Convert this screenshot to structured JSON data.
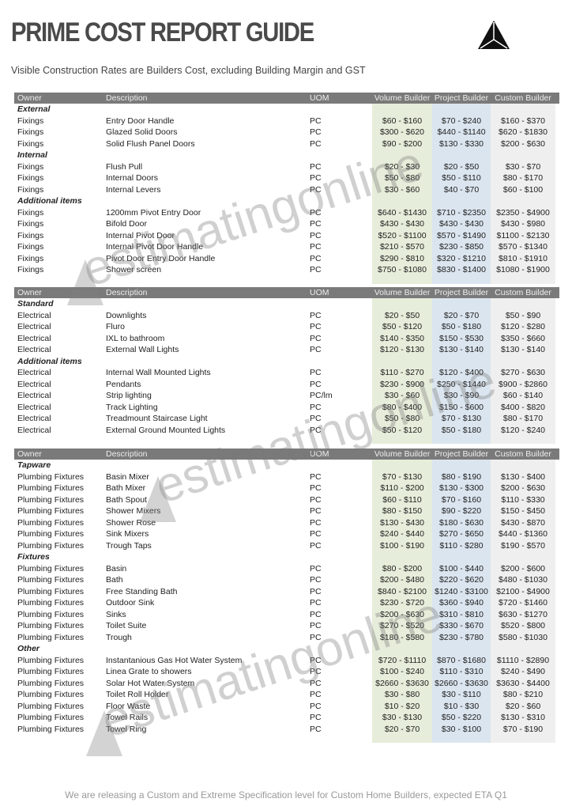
{
  "title": "PRIME COST REPORT GUIDE",
  "subtitle": "Visible Construction Rates are Builders Cost, excluding Building Margin and GST",
  "logo_icon": "triangle-logo-icon",
  "watermark": "estimatingonline",
  "colors": {
    "header_bg": "#7a7a7a",
    "volume_band": "#e6edda",
    "project_band": "#dbe5ef",
    "custom_band": "#efefef"
  },
  "columns": {
    "owner": "Owner",
    "description": "Description",
    "uom": "UOM",
    "volume": "Volume Builder",
    "project": "Project Builder",
    "custom": "Custom Builder"
  },
  "sections": [
    {
      "rows": [
        {
          "group": "External"
        },
        {
          "owner": "Fixings",
          "description": "Entry Door Handle",
          "uom": "PC",
          "volume": "$60 - $160",
          "project": "$70 - $240",
          "custom": "$160 - $370"
        },
        {
          "owner": "Fixings",
          "description": "Glazed Solid Doors",
          "uom": "PC",
          "volume": "$300 - $620",
          "project": "$440 - $1140",
          "custom": "$620 - $1830"
        },
        {
          "owner": "Fixings",
          "description": "Solid Flush Panel Doors",
          "uom": "PC",
          "volume": "$90 - $200",
          "project": "$130 - $330",
          "custom": "$200 - $630"
        },
        {
          "group": "Internal"
        },
        {
          "owner": "Fixings",
          "description": "Flush Pull",
          "uom": "PC",
          "volume": "$20 - $30",
          "project": "$20 - $50",
          "custom": "$30 - $70"
        },
        {
          "owner": "Fixings",
          "description": "Internal Doors",
          "uom": "PC",
          "volume": "$50 - $80",
          "project": "$50 - $110",
          "custom": "$80 - $170"
        },
        {
          "owner": "Fixings",
          "description": "Internal Levers",
          "uom": "PC",
          "volume": "$30 - $60",
          "project": "$40 - $70",
          "custom": "$60 - $100"
        },
        {
          "group": "Additional items"
        },
        {
          "owner": "Fixings",
          "description": "1200mm Pivot Entry Door",
          "uom": "PC",
          "volume": "$640 - $1430",
          "project": "$710 - $2350",
          "custom": "$2350 - $4900"
        },
        {
          "owner": "Fixings",
          "description": "Bifold Door",
          "uom": "PC",
          "volume": "$430 - $430",
          "project": "$430 - $430",
          "custom": "$430 - $980"
        },
        {
          "owner": "Fixings",
          "description": "Internal Pivot Door",
          "uom": "PC",
          "volume": "$520 - $1100",
          "project": "$570 - $1490",
          "custom": "$1100 - $2130"
        },
        {
          "owner": "Fixings",
          "description": "Internal Pivot Door Handle",
          "uom": "PC",
          "volume": "$210 - $570",
          "project": "$230 - $850",
          "custom": "$570 - $1340"
        },
        {
          "owner": "Fixings",
          "description": "Pivot Door Entry Door Handle",
          "uom": "PC",
          "volume": "$290 - $810",
          "project": "$320 - $1210",
          "custom": "$810 - $1910"
        },
        {
          "owner": "Fixings",
          "description": "Shower screen",
          "uom": "PC",
          "volume": "$750 - $1080",
          "project": "$830 - $1400",
          "custom": "$1080 - $1900"
        }
      ]
    },
    {
      "rows": [
        {
          "group": "Standard"
        },
        {
          "owner": "Electrical",
          "description": "Downlights",
          "uom": "PC",
          "volume": "$20 - $50",
          "project": "$20 - $70",
          "custom": "$50 - $90"
        },
        {
          "owner": "Electrical",
          "description": "Fluro",
          "uom": "PC",
          "volume": "$50 - $120",
          "project": "$50 - $180",
          "custom": "$120 - $280"
        },
        {
          "owner": "Electrical",
          "description": "IXL to bathroom",
          "uom": "PC",
          "volume": "$140 - $350",
          "project": "$150 - $530",
          "custom": "$350 - $660"
        },
        {
          "owner": "Electrical",
          "description": "External Wall Lights",
          "uom": "PC",
          "volume": "$120 - $130",
          "project": "$130 - $140",
          "custom": "$130 - $140"
        },
        {
          "group": "Additional items"
        },
        {
          "owner": "Electrical",
          "description": "Internal Wall Mounted Lights",
          "uom": "PC",
          "volume": "$110 - $270",
          "project": "$120 - $400",
          "custom": "$270 - $630"
        },
        {
          "owner": "Electrical",
          "description": "Pendants",
          "uom": "PC",
          "volume": "$230 - $900",
          "project": "$250 - $1440",
          "custom": "$900 - $2860"
        },
        {
          "owner": "Electrical",
          "description": "Strip lighting",
          "uom": "PC/lm",
          "volume": "$30 - $60",
          "project": "$30 - $90",
          "custom": "$60 - $140"
        },
        {
          "owner": "Electrical",
          "description": "Track Lighting",
          "uom": "PC",
          "volume": "$80 - $400",
          "project": "$150 - $600",
          "custom": "$400 - $820"
        },
        {
          "owner": "Electrical",
          "description": "Treadmount Staircase Light",
          "uom": "PC",
          "volume": "$50 - $80",
          "project": "$70 - $130",
          "custom": "$80 - $170"
        },
        {
          "owner": "Electrical",
          "description": "External Ground Mounted Lights",
          "uom": "PC",
          "volume": "$50 - $120",
          "project": "$50 - $180",
          "custom": "$120 - $240"
        }
      ]
    },
    {
      "rows": [
        {
          "group": "Tapware"
        },
        {
          "owner": "Plumbing Fixtures",
          "description": "Basin Mixer",
          "uom": "PC",
          "volume": "$70 - $130",
          "project": "$80 - $190",
          "custom": "$130 - $400"
        },
        {
          "owner": "Plumbing Fixtures",
          "description": "Bath Mixer",
          "uom": "PC",
          "volume": "$110 - $200",
          "project": "$130 - $300",
          "custom": "$200 - $630"
        },
        {
          "owner": "Plumbing Fixtures",
          "description": "Bath Spout",
          "uom": "PC",
          "volume": "$60 - $110",
          "project": "$70 - $160",
          "custom": "$110 - $330"
        },
        {
          "owner": "Plumbing Fixtures",
          "description": "Shower Mixers",
          "uom": "PC",
          "volume": "$80 - $150",
          "project": "$90 - $220",
          "custom": "$150 - $450"
        },
        {
          "owner": "Plumbing Fixtures",
          "description": "Shower Rose",
          "uom": "PC",
          "volume": "$130 - $430",
          "project": "$180 - $630",
          "custom": "$430 - $870"
        },
        {
          "owner": "Plumbing Fixtures",
          "description": "Sink Mixers",
          "uom": "PC",
          "volume": "$240 - $440",
          "project": "$270 - $650",
          "custom": "$440 - $1360"
        },
        {
          "owner": "Plumbing Fixtures",
          "description": "Trough Taps",
          "uom": "PC",
          "volume": "$100 - $190",
          "project": "$110 - $280",
          "custom": "$190 - $570"
        },
        {
          "group": "Fixtures"
        },
        {
          "owner": "Plumbing Fixtures",
          "description": "Basin",
          "uom": "PC",
          "volume": "$80 - $200",
          "project": "$100 - $440",
          "custom": "$200 - $600"
        },
        {
          "owner": "Plumbing Fixtures",
          "description": "Bath",
          "uom": "PC",
          "volume": "$200 - $480",
          "project": "$220 - $620",
          "custom": "$480 - $1030"
        },
        {
          "owner": "Plumbing Fixtures",
          "description": "Free Standing Bath",
          "uom": "PC",
          "volume": "$840 - $2100",
          "project": "$1240 - $3100",
          "custom": "$2100 - $4900"
        },
        {
          "owner": "Plumbing Fixtures",
          "description": "Outdoor Sink",
          "uom": "PC",
          "volume": "$230 - $720",
          "project": "$360 - $940",
          "custom": "$720 - $1460"
        },
        {
          "owner": "Plumbing Fixtures",
          "description": "Sinks",
          "uom": "PC",
          "volume": "$200 - $630",
          "project": "$310 - $810",
          "custom": "$630 - $1270"
        },
        {
          "owner": "Plumbing Fixtures",
          "description": "Toilet Suite",
          "uom": "PC",
          "volume": "$270 - $520",
          "project": "$330 - $670",
          "custom": "$520 - $800"
        },
        {
          "owner": "Plumbing Fixtures",
          "description": "Trough",
          "uom": "PC",
          "volume": "$180 - $580",
          "project": "$230 - $780",
          "custom": "$580 - $1030"
        },
        {
          "group": "Other"
        },
        {
          "owner": "Plumbing Fixtures",
          "description": "Instantanious Gas Hot Water System",
          "uom": "PC",
          "volume": "$720 - $1110",
          "project": "$870 - $1680",
          "custom": "$1110 - $2890"
        },
        {
          "owner": "Plumbing Fixtures",
          "description": "Linea Grate to showers",
          "uom": "PC",
          "volume": "$100 - $240",
          "project": "$110 - $310",
          "custom": "$240 - $490"
        },
        {
          "owner": "Plumbing Fixtures",
          "description": "Solar Hot Water System",
          "uom": "PC",
          "volume": "$2660 - $3630",
          "project": "$2660 - $3630",
          "custom": "$3630 - $4400"
        },
        {
          "owner": "Plumbing Fixtures",
          "description": "Toilet Roll Holder",
          "uom": "PC",
          "volume": "$30 - $80",
          "project": "$30 - $110",
          "custom": "$80 - $210"
        },
        {
          "owner": "Plumbing Fixtures",
          "description": "Floor Waste",
          "uom": "PC",
          "volume": "$10 - $20",
          "project": "$10 - $30",
          "custom": "$20 - $60"
        },
        {
          "owner": "Plumbing Fixtures",
          "description": "Towel Rails",
          "uom": "PC",
          "volume": "$30 - $130",
          "project": "$50 - $220",
          "custom": "$130 - $310"
        },
        {
          "owner": "Plumbing Fixtures",
          "description": "Towel Ring",
          "uom": "PC",
          "volume": "$20 - $70",
          "project": "$30 - $100",
          "custom": "$70 - $190"
        }
      ]
    }
  ],
  "footer": "We are releasing a Custom and Extreme Specification level for Custom Home Builders, expected ETA Q1"
}
